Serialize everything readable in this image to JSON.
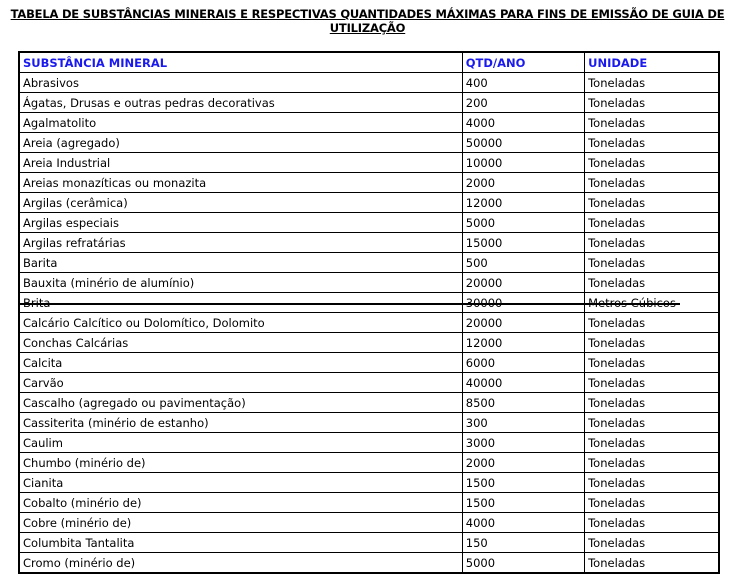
{
  "title": "TABELA DE SUBSTÂNCIAS MINERAIS E RESPECTIVAS QUANTIDADES MÁXIMAS PARA FINS DE EMISSÃO DE GUIA DE UTILIZAÇÃO",
  "headers": [
    "SUBSTÂNCIA MINERAL",
    "QTD/ANO",
    "UNIDADE"
  ],
  "rows": [
    [
      "Abrasivos",
      "400",
      "Toneladas"
    ],
    [
      "Ágatas, Drusas e outras pedras decorativas",
      "200",
      "Toneladas"
    ],
    [
      "Agalmatolito",
      "4000",
      "Toneladas"
    ],
    [
      "Areia (agregado)",
      "50000",
      "Toneladas"
    ],
    [
      "Areia Industrial",
      "10000",
      "Toneladas"
    ],
    [
      "Areias monazíticas ou monazita",
      "2000",
      "Toneladas"
    ],
    [
      "Argilas (cerâmica)",
      "12000",
      "Toneladas"
    ],
    [
      "Argilas especiais",
      "5000",
      "Toneladas"
    ],
    [
      "Argilas refratárias",
      "15000",
      "Toneladas"
    ],
    [
      "Barita",
      "500",
      "Toneladas"
    ],
    [
      "Bauxita (minério de alumínio)",
      "20000",
      "Toneladas"
    ],
    [
      "Brita",
      "30000",
      "Metros Cúbicos"
    ],
    [
      "Calcário Calcítico ou Dolomítico, Dolomito",
      "20000",
      "Toneladas"
    ],
    [
      "Conchas Calcárias",
      "12000",
      "Toneladas"
    ],
    [
      "Calcita",
      "6000",
      "Toneladas"
    ],
    [
      "Carvão",
      "40000",
      "Toneladas"
    ],
    [
      "Cascalho (agregado ou pavimentação)",
      "8500",
      "Toneladas"
    ],
    [
      "Cassiterita (minério de estanho)",
      "300",
      "Toneladas"
    ],
    [
      "Caulim",
      "3000",
      "Toneladas"
    ],
    [
      "Chumbo (minério de)",
      "2000",
      "Toneladas"
    ],
    [
      "Cianita",
      "1500",
      "Toneladas"
    ],
    [
      "Cobalto (minério de)",
      "1500",
      "Toneladas"
    ],
    [
      "Cobre (minério de)",
      "4000",
      "Toneladas"
    ],
    [
      "Columbita Tantalita",
      "150",
      "Toneladas"
    ],
    [
      "Cromo (minério de)",
      "5000",
      "Toneladas"
    ]
  ],
  "struck_row": "Brita",
  "colors": {
    "header": "#1a1aee"
  }
}
